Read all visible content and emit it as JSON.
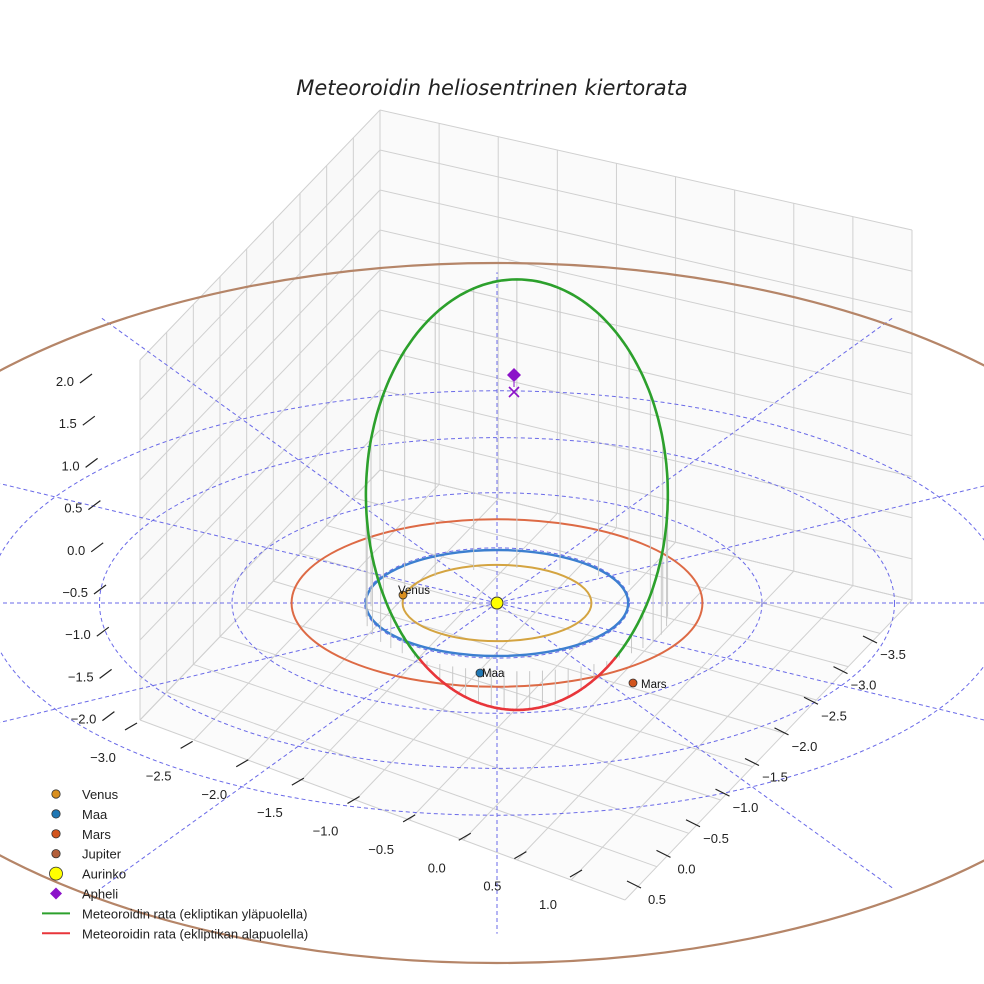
{
  "chart_data": {
    "type": "3d-orbit",
    "title": "Meteoroidin heliosentrinen kiertorata",
    "axes": {
      "x_ticks": [
        "−3.0",
        "−2.5",
        "−2.0",
        "−1.5",
        "−1.0",
        "−0.5",
        "0.0",
        "0.5",
        "1.0"
      ],
      "y_ticks": [
        "−3.5",
        "−3.0",
        "−2.5",
        "−2.0",
        "−1.5",
        "−1.0",
        "−0.5",
        "0.0",
        "0.5"
      ],
      "z_ticks": [
        "2.0",
        "1.5",
        "1.0",
        "0.5",
        "0.0",
        "−0.5",
        "−1.0",
        "−1.5",
        "−2.0"
      ],
      "ranges": {
        "x": [
          -3.2,
          1.2
        ],
        "y": [
          -3.7,
          0.7
        ],
        "z": [
          -2.2,
          2.2
        ]
      },
      "unit": "AU"
    },
    "ecliptic_grid": {
      "ring_radii_au": [
        1,
        2,
        3,
        5.2
      ],
      "style": "dashed",
      "color": "#6a6ae8"
    },
    "planet_orbits": [
      {
        "name": "Venus",
        "radius_au": 0.72,
        "color": "#d4a441"
      },
      {
        "name": "Maa",
        "radius_au": 1.0,
        "color": "#3c7fd0"
      },
      {
        "name": "Mars",
        "radius_au": 1.52,
        "color": "#dd6a45"
      },
      {
        "name": "Jupiter",
        "radius_au": 5.2,
        "color": "#b58568"
      }
    ],
    "planets": [
      {
        "name": "Venus",
        "label": "Venus",
        "color": "#d98f1f"
      },
      {
        "name": "Maa",
        "label": "Maa",
        "color": "#1f77b4"
      },
      {
        "name": "Mars",
        "label": "Mars",
        "color": "#d2551e"
      },
      {
        "name": "Jupiter",
        "label": "",
        "color": "#b35f3a"
      }
    ],
    "sun": {
      "name": "Aurinko",
      "color": "#ffff00"
    },
    "aphelion": {
      "name": "Apheli",
      "color": "#8b12c9",
      "height_au": 2.3
    },
    "meteoroid_orbit": {
      "semi_major_axis_au": 2.2,
      "eccentricity": 0.55,
      "inclination_deg": 65,
      "above_color": "#2ca02c",
      "below_color": "#e8353a"
    },
    "legend": [
      {
        "label": "Venus",
        "marker": "circle",
        "color": "#d98f1f"
      },
      {
        "label": "Maa",
        "marker": "circle",
        "color": "#1f77b4"
      },
      {
        "label": "Mars",
        "marker": "circle",
        "color": "#d2551e"
      },
      {
        "label": "Jupiter",
        "marker": "circle",
        "color": "#b35f3a"
      },
      {
        "label": "Aurinko",
        "marker": "big-circle",
        "color": "#ffff00"
      },
      {
        "label": "Apheli",
        "marker": "diamond",
        "color": "#8b12c9"
      },
      {
        "label": "Meteoroidin rata (ekliptikan yläpuolella)",
        "marker": "line",
        "color": "#2ca02c"
      },
      {
        "label": "Meteoroidin rata (ekliptikan alapuolella)",
        "marker": "line",
        "color": "#e8353a"
      }
    ]
  }
}
